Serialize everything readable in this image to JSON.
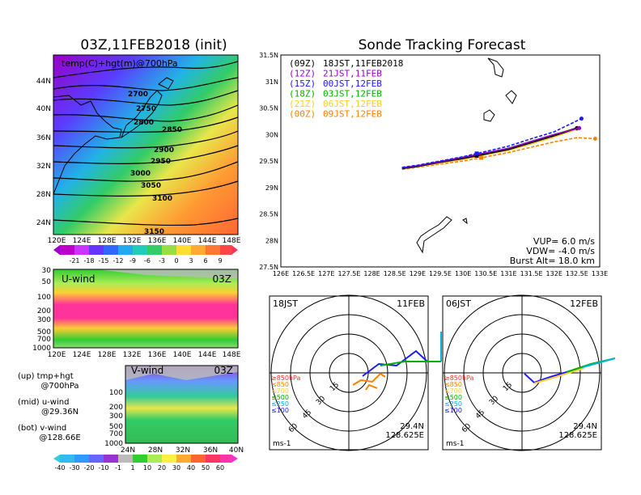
{
  "titles": {
    "left": "03Z,11FEB2018 (init)",
    "right": "Sonde Tracking Forecast"
  },
  "map_panel": {
    "label": "temp(C)+hgt(m)@700hPa",
    "x_ticks": [
      "120E",
      "124E",
      "128E",
      "132E",
      "136E",
      "140E",
      "144E",
      "148E"
    ],
    "y_ticks": [
      "44N",
      "40N",
      "36N",
      "32N",
      "28N",
      "24N"
    ],
    "contour_labels": [
      "2700",
      "2750",
      "2800",
      "2850",
      "2900",
      "2950",
      "3000",
      "3050",
      "3100",
      "3150"
    ],
    "colorbar_labels": [
      "-21",
      "-18",
      "-15",
      "-12",
      "-9",
      "-6",
      "-3",
      "0",
      "3",
      "6",
      "9"
    ]
  },
  "uwind_panel": {
    "label": "U-wind",
    "time": "03Z",
    "y_ticks": [
      "30",
      "50",
      "100",
      "200",
      "300",
      "500",
      "700",
      "1000"
    ],
    "x_ticks": [
      "120E",
      "124E",
      "128E",
      "132E",
      "136E",
      "140E",
      "144E",
      "148E"
    ]
  },
  "vwind_panel": {
    "label": "V-wind",
    "time": "03Z",
    "y_ticks": [
      "100",
      "200",
      "300",
      "500",
      "700",
      "1000"
    ],
    "x_ticks": [
      "24N",
      "28N",
      "32N",
      "36N",
      "40N"
    ],
    "colorbar_labels": [
      "-40",
      "-30",
      "-20",
      "-10",
      "-1",
      "1",
      "10",
      "20",
      "30",
      "40",
      "50",
      "60"
    ]
  },
  "notes": [
    {
      "line1": "(up) tmp+hgt",
      "line2": "@700hPa"
    },
    {
      "line1": "(mid) u-wind",
      "line2": "@29.36N"
    },
    {
      "line1": "(bot) v-wind",
      "line2": "@128.66E"
    }
  ],
  "track_panel": {
    "x_ticks": [
      "126E",
      "126.5E",
      "127E",
      "127.5E",
      "128E",
      "128.5E",
      "129E",
      "129.5E",
      "130E",
      "130.5E",
      "131E",
      "131.5E",
      "132E",
      "132.5E",
      "133E"
    ],
    "y_ticks": [
      "31.5N",
      "31N",
      "30.5N",
      "30N",
      "29.5N",
      "29N",
      "28.5N",
      "28N",
      "27.5N"
    ],
    "legend": [
      {
        "code": "(09Z)",
        "text": "18JST,11FEB2018",
        "color": "#000000"
      },
      {
        "code": "(12Z)",
        "text": "21JST,11FEB",
        "color": "#9900cc"
      },
      {
        "code": "(15Z)",
        "text": "00JST,12FEB",
        "color": "#1a1aff"
      },
      {
        "code": "(18Z)",
        "text": "03JST,12FEB",
        "color": "#00b200"
      },
      {
        "code": "(21Z)",
        "text": "06JST,12FEB",
        "color": "#ffcc33"
      },
      {
        "code": "(00Z)",
        "text": "09JST,12FEB",
        "color": "#ff8000"
      }
    ],
    "info": [
      "VUP= 6.0 m/s",
      "VDW= -4.0 m/s",
      "Burst Alt= 18.0 km"
    ]
  },
  "chart_data": [
    {
      "type": "line",
      "title": "Sonde Tracking Forecast",
      "xlim": [
        126,
        133
      ],
      "ylim": [
        27.5,
        31.5
      ],
      "series": [
        {
          "name": "18JST,11FEB2018",
          "x": [
            128.66,
            129.0,
            129.5,
            130.0,
            130.3,
            131.0,
            131.5,
            132.0,
            132.5
          ],
          "y": [
            29.36,
            29.4,
            29.48,
            29.55,
            29.6,
            29.72,
            29.85,
            29.98,
            30.12
          ]
        },
        {
          "name": "21JST,11FEB",
          "x": [
            128.66,
            129.0,
            129.5,
            130.0,
            130.3,
            131.0,
            131.5,
            132.0,
            132.55
          ],
          "y": [
            29.37,
            29.41,
            29.49,
            29.57,
            29.62,
            29.74,
            29.87,
            30.0,
            30.12
          ]
        },
        {
          "name": "00JST,12FEB",
          "x": [
            128.66,
            129.0,
            129.5,
            130.0,
            130.3,
            131.0,
            131.5,
            132.0,
            132.6
          ],
          "y": [
            29.38,
            29.42,
            29.5,
            29.58,
            29.64,
            29.78,
            29.92,
            30.05,
            30.3
          ]
        },
        {
          "name": "03JST,12FEB",
          "x": [
            128.66,
            129.0,
            129.5,
            130.0,
            130.3,
            131.0,
            131.5,
            132.0,
            132.5
          ],
          "y": [
            29.37,
            29.41,
            29.49,
            29.56,
            29.61,
            29.74,
            29.87,
            30.0,
            30.12
          ]
        },
        {
          "name": "06JST,12FEB",
          "x": [
            128.66,
            129.0,
            129.5,
            130.0,
            130.3,
            131.0,
            131.5,
            132.0,
            132.5
          ],
          "y": [
            29.36,
            29.39,
            29.46,
            29.53,
            29.58,
            29.7,
            29.82,
            29.95,
            30.1
          ]
        },
        {
          "name": "09JST,12FEB",
          "x": [
            128.66,
            129.0,
            129.5,
            130.0,
            130.4,
            131.0,
            131.5,
            132.0,
            132.5,
            132.9
          ],
          "y": [
            29.34,
            29.38,
            29.44,
            29.5,
            29.56,
            29.66,
            29.76,
            29.86,
            29.94,
            29.92
          ]
        }
      ]
    }
  ],
  "hodographs": [
    {
      "time": "18JST",
      "date": "11FEB",
      "lat": "29.4N",
      "lon": "128.625E",
      "unit": "ms-1",
      "rings": [
        "15",
        "30",
        "45",
        "60"
      ],
      "legend": [
        {
          "t": "≥850hPa",
          "c": "#ff3333"
        },
        {
          "t": "≤850",
          "c": "#ff8000"
        },
        {
          "t": "≤700",
          "c": "#ffcc33"
        },
        {
          "t": "≤500",
          "c": "#00b200"
        },
        {
          "t": "≤250",
          "c": "#00b2e6"
        },
        {
          "t": "≤100",
          "c": "#1a1aff"
        }
      ]
    },
    {
      "time": "06JST",
      "date": "12FEB",
      "lat": "29.4N",
      "lon": "128.625E",
      "unit": "ms-1",
      "rings": [
        "15",
        "30",
        "45",
        "60"
      ],
      "legend": [
        {
          "t": "≥850hPa",
          "c": "#ff3333"
        },
        {
          "t": "≤850",
          "c": "#ff8000"
        },
        {
          "t": "≤700",
          "c": "#ffcc33"
        },
        {
          "t": "≤500",
          "c": "#00b200"
        },
        {
          "t": "≤250",
          "c": "#00b2e6"
        },
        {
          "t": "≤100",
          "c": "#1a1aff"
        }
      ]
    }
  ]
}
